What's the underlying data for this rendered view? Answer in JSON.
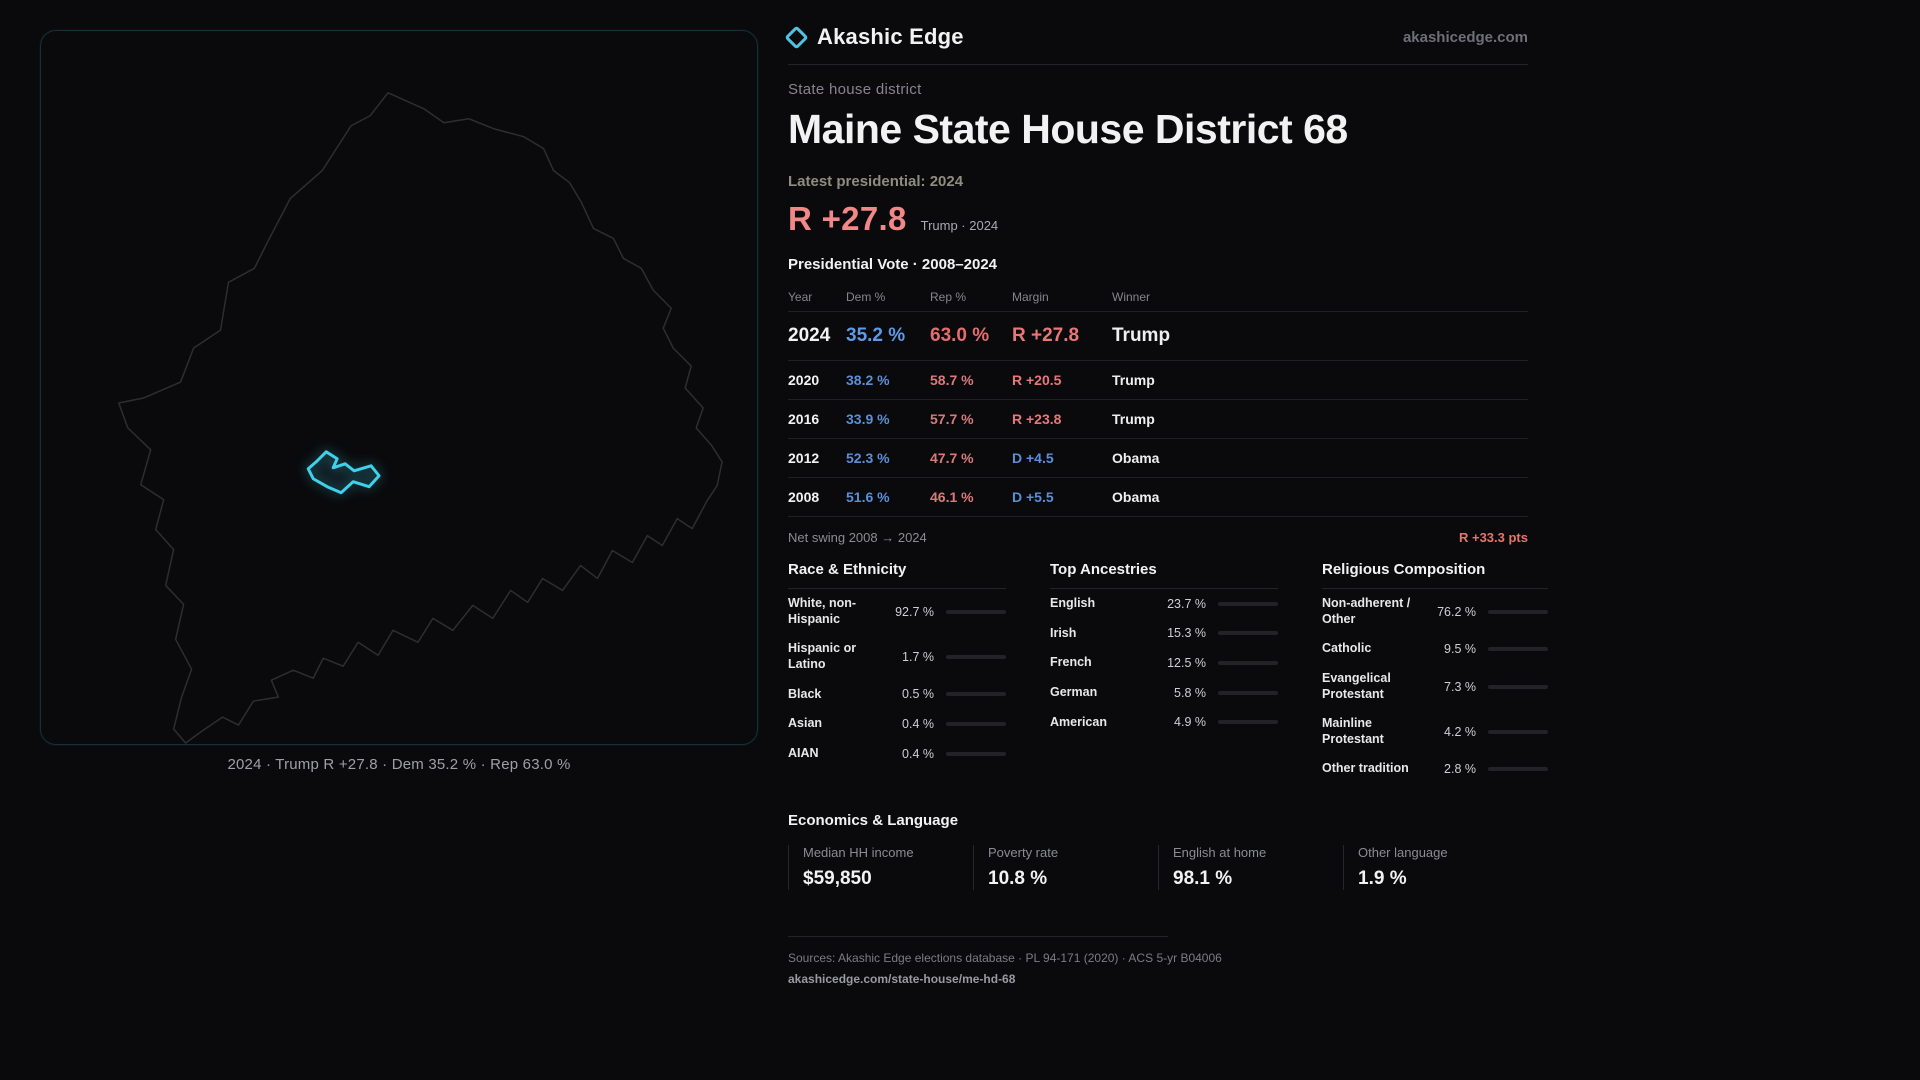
{
  "brand": {
    "name": "Akashic Edge",
    "domain": "akashicedge.com"
  },
  "map": {
    "caption": "2024 · Trump R +27.8 · Dem 35.2 % · Rep 63.0 %"
  },
  "page": {
    "kicker": "State house district",
    "title": "Maine State House District 68",
    "latest_label": "Latest presidential: 2024",
    "margin_big": "R +27.8",
    "margin_note": "Trump · 2024"
  },
  "table": {
    "title": "Presidential Vote · 2008–2024",
    "headers": [
      "Year",
      "Dem %",
      "Rep %",
      "Margin",
      "Winner"
    ],
    "rows": [
      {
        "year": "2024",
        "dem": "35.2 %",
        "rep": "63.0 %",
        "margin": "R +27.8",
        "winner": "Trump"
      },
      {
        "year": "2020",
        "dem": "38.2 %",
        "rep": "58.7 %",
        "margin": "R +20.5",
        "winner": "Trump"
      },
      {
        "year": "2016",
        "dem": "33.9 %",
        "rep": "57.7 %",
        "margin": "R +23.8",
        "winner": "Trump"
      },
      {
        "year": "2012",
        "dem": "52.3 %",
        "rep": "47.7 %",
        "margin": "D +4.5",
        "winner": "Obama"
      },
      {
        "year": "2008",
        "dem": "51.6 %",
        "rep": "46.1 %",
        "margin": "D +5.5",
        "winner": "Obama"
      }
    ]
  },
  "swing": {
    "label": "Net swing 2008 → 2024",
    "value": "R +33.3 pts"
  },
  "demographics": {
    "race": {
      "title": "Race & Ethnicity",
      "rows": [
        {
          "label": "White, non-Hispanic",
          "value": "92.7 %",
          "pct": 92.7,
          "color": "#8f8f97"
        },
        {
          "label": "Hispanic or Latino",
          "value": "1.7 %",
          "pct": 1.7,
          "color": "#8f8f97"
        },
        {
          "label": "Black",
          "value": "0.5 %",
          "pct": 0.5,
          "color": "#8f8f97"
        },
        {
          "label": "Asian",
          "value": "0.4 %",
          "pct": 0.4,
          "color": "#8f8f97"
        },
        {
          "label": "AIAN",
          "value": "0.4 %",
          "pct": 0.4,
          "color": "#8f8f97"
        }
      ]
    },
    "ancestry": {
      "title": "Top Ancestries",
      "rows": [
        {
          "label": "English",
          "value": "23.7 %",
          "pct": 23.7,
          "color": "#8f8f97"
        },
        {
          "label": "Irish",
          "value": "15.3 %",
          "pct": 15.3,
          "color": "#8f8f97"
        },
        {
          "label": "French",
          "value": "12.5 %",
          "pct": 12.5,
          "color": "#8f8f97"
        },
        {
          "label": "German",
          "value": "5.8 %",
          "pct": 5.8,
          "color": "#8f8f97"
        },
        {
          "label": "American",
          "value": "4.9 %",
          "pct": 4.9,
          "color": "#8f8f97"
        }
      ]
    },
    "religion": {
      "title": "Religious Composition",
      "rows": [
        {
          "label": "Non-adherent / Other",
          "value": "76.2 %",
          "pct": 76.2,
          "color": "#8f8f97"
        },
        {
          "label": "Catholic",
          "value": "9.5 %",
          "pct": 9.5,
          "color": "#d9a84a"
        },
        {
          "label": "Evangelical Protestant",
          "value": "7.3 %",
          "pct": 7.3,
          "color": "#e57d7d"
        },
        {
          "label": "Mainline Protestant",
          "value": "4.2 %",
          "pct": 4.2,
          "color": "#5b8fd9"
        },
        {
          "label": "Other tradition",
          "value": "2.8 %",
          "pct": 2.8,
          "color": "#8f8f97"
        }
      ]
    }
  },
  "economics": {
    "title": "Economics & Language",
    "stats": [
      {
        "label": "Median HH income",
        "value": "$59,850"
      },
      {
        "label": "Poverty rate",
        "value": "10.8 %"
      },
      {
        "label": "English at home",
        "value": "98.1 %"
      },
      {
        "label": "Other language",
        "value": "1.9 %"
      }
    ]
  },
  "footer": {
    "sources": "Sources: Akashic Edge elections database · PL 94-171 (2020) · ACS 5-yr B04006",
    "permalink": "akashicedge.com/state-house/me-hd-68"
  }
}
